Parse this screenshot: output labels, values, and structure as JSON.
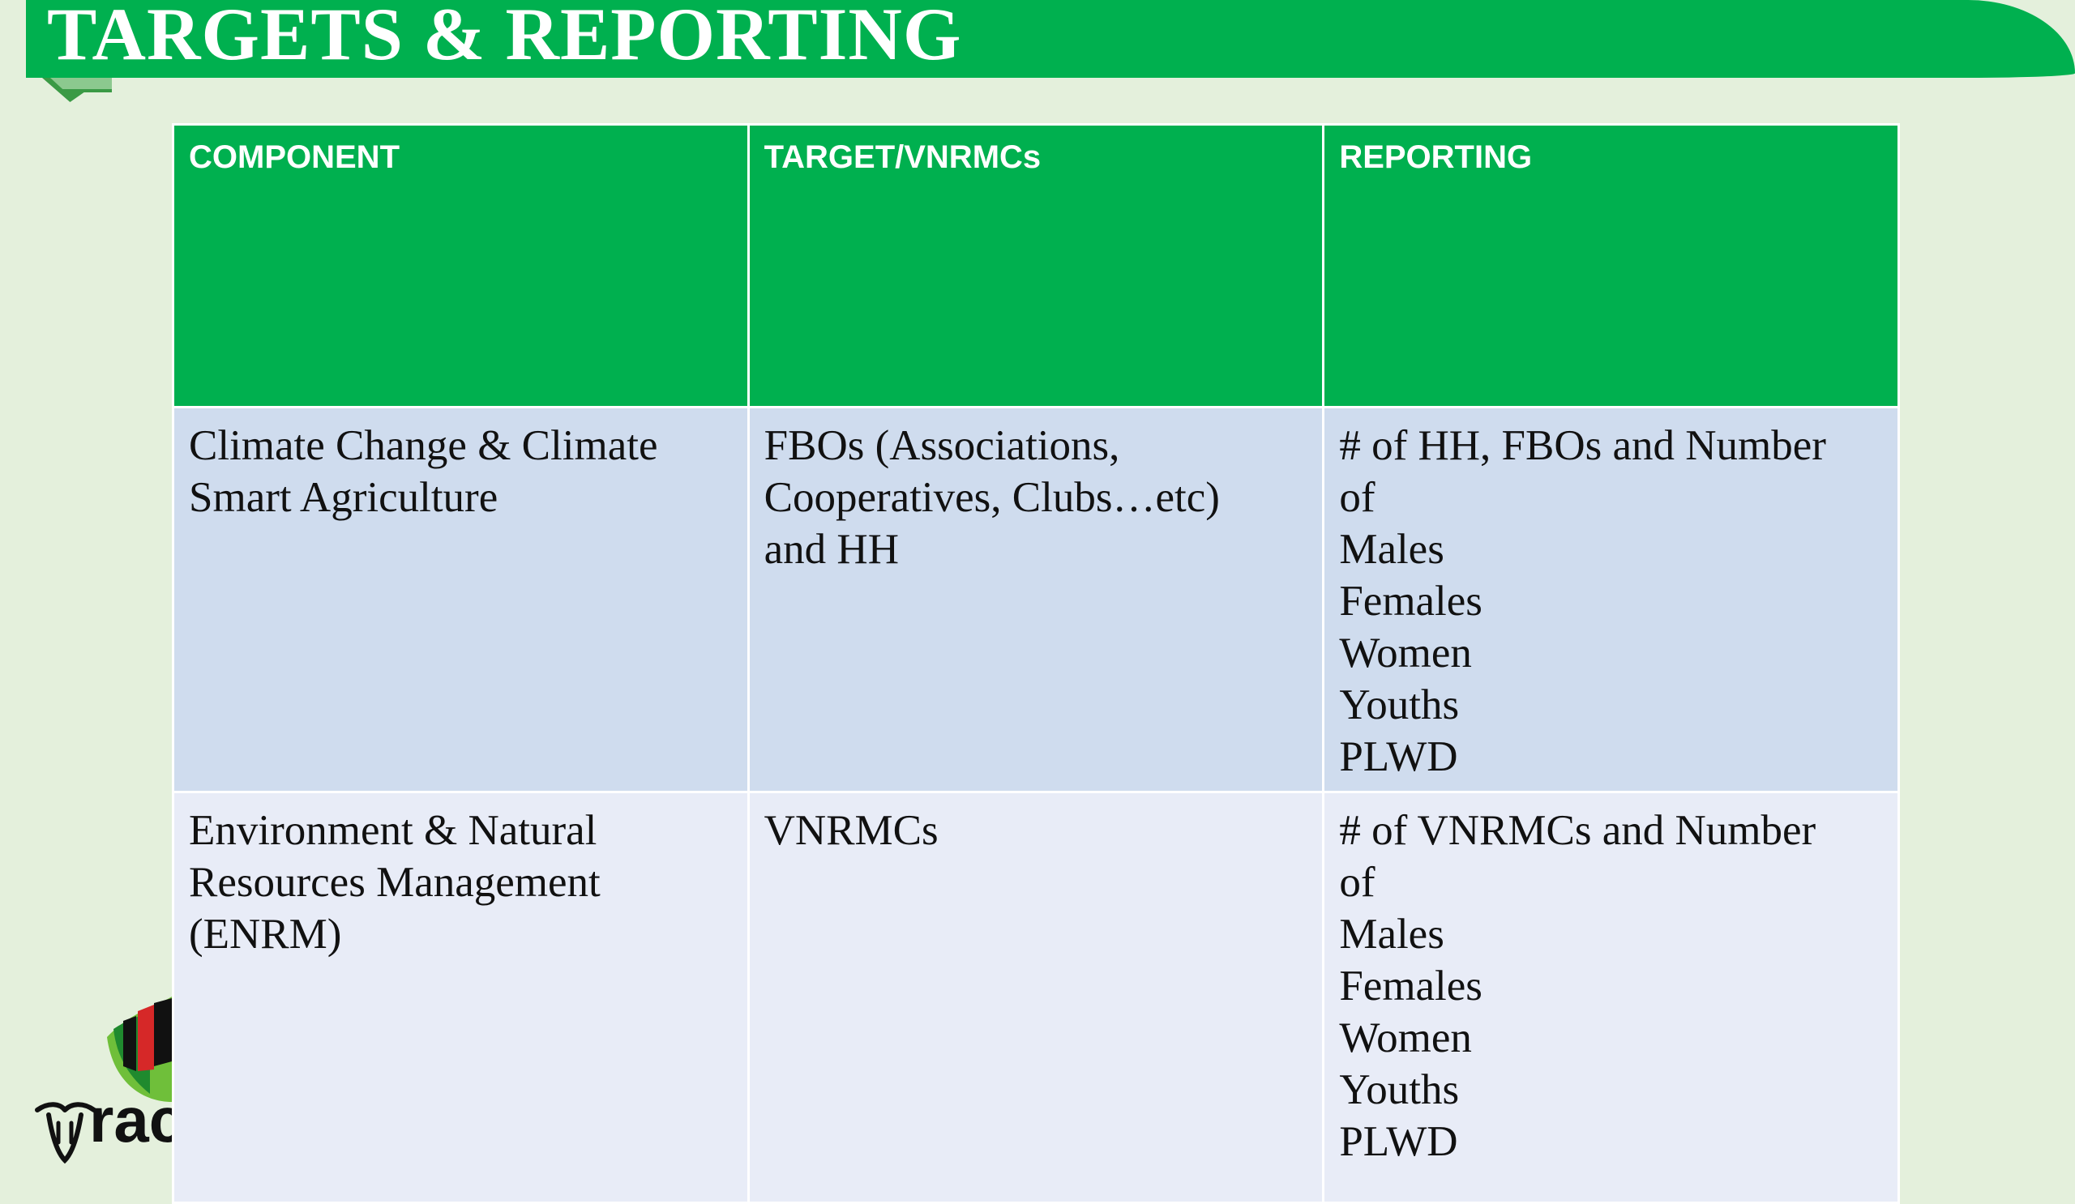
{
  "title": "TARGETS & REPORTING",
  "table": {
    "headers": [
      "COMPONENT",
      "TARGET/VNRMCs",
      "REPORTING"
    ],
    "rows": [
      {
        "component": [
          "Climate Change & Climate",
          "Smart Agriculture"
        ],
        "target": [
          "FBOs (Associations,",
          "Cooperatives, Clubs…etc)",
          "and HH"
        ],
        "reporting": [
          "# of HH, FBOs and Number",
          "of",
          "Males",
          "Females",
          "Women",
          "Youths",
          "PLWD"
        ]
      },
      {
        "component": [
          "Environment & Natural",
          "Resources Management",
          "(ENRM)"
        ],
        "target": [
          "VNRMCs"
        ],
        "reporting": [
          "# of VNRMCs and Number",
          "of",
          "Males",
          "Females",
          "Women",
          "Youths",
          "PLWD"
        ]
      }
    ]
  },
  "logo": {
    "text": "rac",
    "icon": "cow-and-leaf-logo"
  },
  "colors": {
    "accent_green": "#00b04f",
    "background": "#e4f0dc",
    "row_1": "#cfdcee",
    "row_2": "#e8ecf7"
  }
}
